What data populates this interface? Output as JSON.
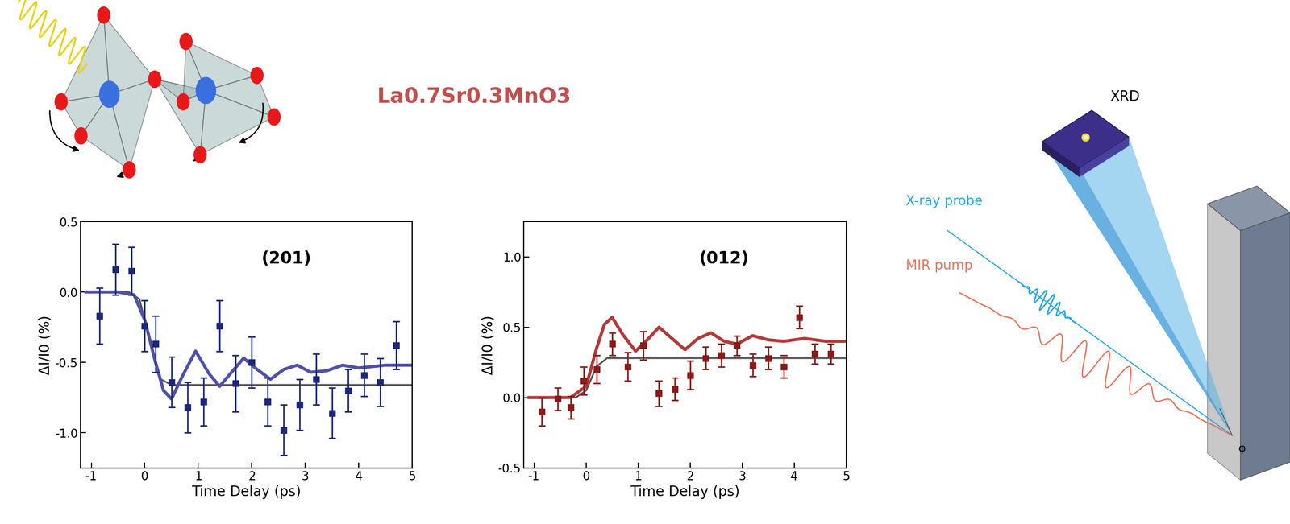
{
  "figure_texts": {
    "compound": "La0.7Sr0.3MnO3",
    "schematic": {
      "detector": "XRD",
      "probe": "X-ray probe",
      "pump": "MIR pump",
      "angle": "φ"
    }
  },
  "chart_data": [
    {
      "type": "scatter",
      "annotation": "(201)",
      "x_label": "Time Delay (ps)",
      "y_label": "ΔI/I0 (%)",
      "xlim": [
        -1.2,
        5
      ],
      "xticks": [
        -1,
        0,
        1,
        2,
        3,
        4,
        5
      ],
      "ylim": [
        -1.25,
        0.5
      ],
      "yticks": [
        -1.0,
        -0.5,
        0.0,
        0.5
      ],
      "series": [
        {
          "type": "line",
          "color": "#555555",
          "line_style": "solid",
          "x": [
            -1.1,
            -0.3,
            -0.1,
            0.1,
            0.3,
            0.5,
            5.0
          ],
          "values": [
            0.0,
            0.0,
            -0.05,
            -0.35,
            -0.62,
            -0.66,
            -0.66
          ]
        },
        {
          "type": "line",
          "color": "#5050a8",
          "line_style": "solid",
          "x": [
            -1.1,
            -0.5,
            -0.2,
            0.0,
            0.2,
            0.35,
            0.5,
            0.7,
            0.95,
            1.2,
            1.4,
            1.6,
            1.85,
            2.1,
            2.35,
            2.6,
            2.85,
            3.1,
            3.4,
            3.7,
            4.0,
            4.5,
            5.0
          ],
          "values": [
            0.0,
            0.0,
            -0.02,
            -0.2,
            -0.5,
            -0.7,
            -0.76,
            -0.6,
            -0.42,
            -0.58,
            -0.67,
            -0.58,
            -0.47,
            -0.55,
            -0.62,
            -0.55,
            -0.52,
            -0.57,
            -0.56,
            -0.52,
            -0.54,
            -0.52,
            -0.52
          ]
        },
        {
          "type": "scatter",
          "color": "#1c2878",
          "marker": "square",
          "x": [
            -0.85,
            -0.55,
            -0.25,
            0.0,
            0.2,
            0.5,
            0.8,
            1.1,
            1.4,
            1.7,
            2.0,
            2.3,
            2.6,
            2.9,
            3.2,
            3.5,
            3.8,
            4.1,
            4.4,
            4.7
          ],
          "values": [
            -0.17,
            0.16,
            0.15,
            -0.24,
            -0.37,
            -0.64,
            -0.82,
            -0.78,
            -0.24,
            -0.65,
            -0.5,
            -0.78,
            -0.98,
            -0.8,
            -0.62,
            -0.86,
            -0.7,
            -0.59,
            -0.64,
            -0.38
          ],
          "errors": [
            0.2,
            0.18,
            0.17,
            0.18,
            0.2,
            0.18,
            0.18,
            0.17,
            0.18,
            0.2,
            0.18,
            0.17,
            0.18,
            0.18,
            0.18,
            0.18,
            0.15,
            0.15,
            0.17,
            0.17
          ]
        }
      ]
    },
    {
      "type": "scatter",
      "annotation": "(012)",
      "x_label": "Time Delay (ps)",
      "y_label": "ΔI/I0 (%)",
      "xlim": [
        -1.2,
        5
      ],
      "xticks": [
        -1,
        0,
        1,
        2,
        3,
        4,
        5
      ],
      "ylim": [
        -0.5,
        1.25
      ],
      "yticks": [
        -0.5,
        0.0,
        0.5,
        1.0
      ],
      "series": [
        {
          "type": "line",
          "color": "#555555",
          "line_style": "solid",
          "x": [
            -1.1,
            -0.2,
            0.0,
            0.2,
            0.4,
            5.0
          ],
          "values": [
            0.0,
            0.0,
            0.05,
            0.22,
            0.28,
            0.28
          ]
        },
        {
          "type": "line",
          "color": "#b03a3a",
          "line_style": "solid",
          "x": [
            -1.1,
            -0.3,
            0.0,
            0.2,
            0.35,
            0.5,
            0.7,
            0.95,
            1.15,
            1.4,
            1.65,
            1.9,
            2.15,
            2.4,
            2.65,
            2.9,
            3.2,
            3.5,
            3.8,
            4.2,
            4.6,
            5.0
          ],
          "values": [
            0.0,
            0.0,
            0.08,
            0.35,
            0.52,
            0.57,
            0.45,
            0.33,
            0.4,
            0.5,
            0.42,
            0.34,
            0.42,
            0.46,
            0.4,
            0.38,
            0.44,
            0.41,
            0.4,
            0.42,
            0.4,
            0.4
          ]
        },
        {
          "type": "scatter",
          "color": "#8b1a1a",
          "marker": "square",
          "x": [
            -0.85,
            -0.55,
            -0.3,
            -0.05,
            0.2,
            0.5,
            0.8,
            1.1,
            1.4,
            1.7,
            2.0,
            2.3,
            2.6,
            2.9,
            3.2,
            3.5,
            3.8,
            4.1,
            4.4,
            4.7
          ],
          "values": [
            -0.1,
            -0.01,
            -0.07,
            0.12,
            0.2,
            0.38,
            0.22,
            0.37,
            0.03,
            0.06,
            0.16,
            0.28,
            0.3,
            0.37,
            0.23,
            0.28,
            0.22,
            0.57,
            0.31,
            0.31
          ],
          "errors": [
            0.1,
            0.08,
            0.08,
            0.1,
            0.1,
            0.08,
            0.1,
            0.1,
            0.09,
            0.08,
            0.1,
            0.08,
            0.08,
            0.07,
            0.08,
            0.08,
            0.08,
            0.08,
            0.07,
            0.07
          ]
        }
      ]
    }
  ]
}
